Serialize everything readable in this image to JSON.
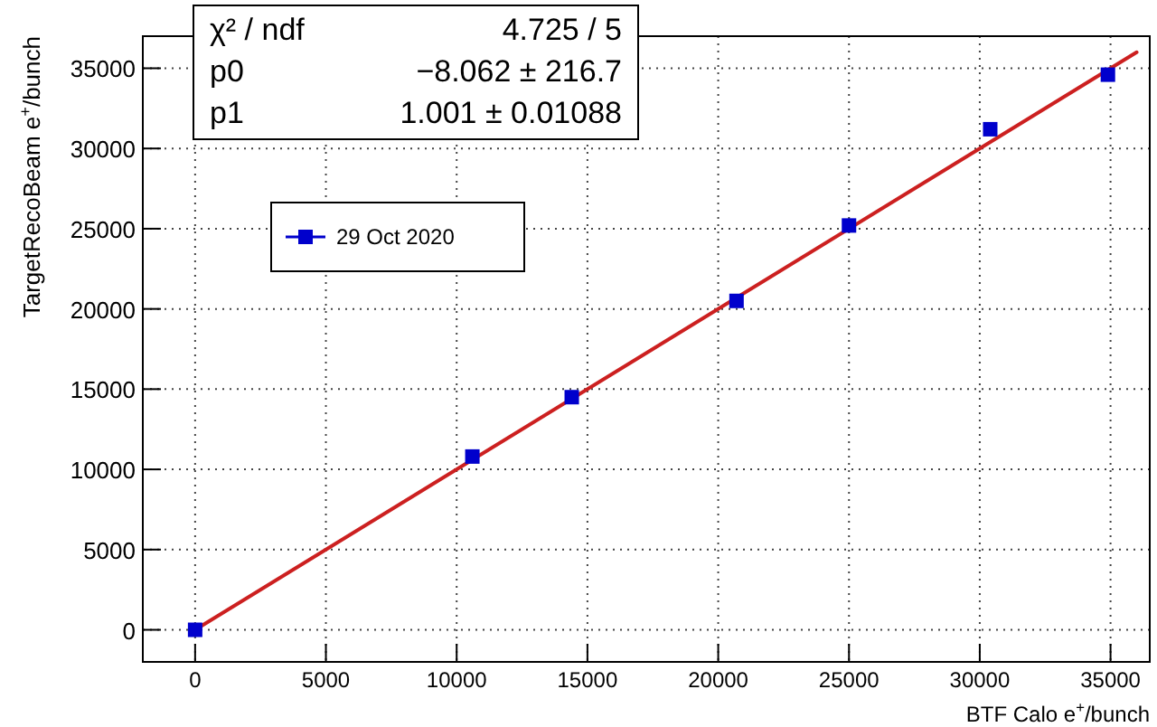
{
  "chart_data": {
    "type": "scatter",
    "xlabel": "BTF Calo e$^{+}$/bunch",
    "ylabel": "TargetRecoBeam e$^{+}$/bunch",
    "xlim": [
      -2000,
      36500
    ],
    "ylim": [
      -2000,
      37000
    ],
    "xticks": [
      0,
      5000,
      10000,
      15000,
      20000,
      25000,
      30000,
      35000
    ],
    "yticks": [
      0,
      5000,
      10000,
      15000,
      20000,
      25000,
      30000,
      35000
    ],
    "grid": true,
    "legend": "top left",
    "annotations": [
      "χ² / ndf",
      "4.725 / 5",
      "p0",
      "−8.062 ± 216.7",
      "p1",
      "1.001 ± 0.01088"
    ],
    "series": [
      {
        "name": "29 Oct 2020",
        "marker": "square",
        "color": "#0000cc",
        "x": [
          0,
          10600,
          14400,
          20700,
          25000,
          30400,
          34900
        ],
        "values": [
          0,
          10800,
          14500,
          20500,
          25200,
          31200,
          34600
        ]
      },
      {
        "type": "line",
        "marker": "none",
        "color": "#cc2020",
        "x": [
          0,
          36000
        ],
        "values": [
          0,
          36000
        ]
      }
    ]
  }
}
